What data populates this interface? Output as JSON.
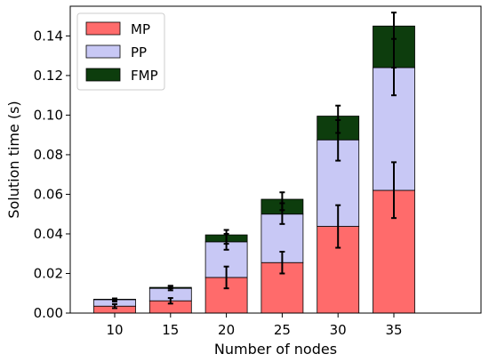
{
  "chart_data": {
    "type": "bar",
    "stacked": true,
    "xlabel": "Number of nodes",
    "ylabel": "Solution time (s)",
    "categories": [
      "10",
      "15",
      "20",
      "25",
      "30",
      "35"
    ],
    "ylim": [
      0,
      0.155
    ],
    "yticks": [
      0.0,
      0.02,
      0.04,
      0.06,
      0.08,
      0.1,
      0.12,
      0.14
    ],
    "ytick_labels": [
      "0.00",
      "0.02",
      "0.04",
      "0.06",
      "0.08",
      "0.10",
      "0.12",
      "0.14"
    ],
    "grid": false,
    "legend_position": "top-left",
    "series": [
      {
        "name": "MP",
        "color": "#ff6b6b",
        "values": [
          0.0035,
          0.0062,
          0.018,
          0.0255,
          0.0438,
          0.062
        ],
        "error_low": [
          0.0025,
          0.0048,
          0.0125,
          0.02,
          0.033,
          0.048
        ],
        "error_high": [
          0.0045,
          0.0076,
          0.0235,
          0.031,
          0.0545,
          0.0762
        ]
      },
      {
        "name": "PP",
        "color": "#c8c8f5",
        "values": [
          0.0033,
          0.0063,
          0.018,
          0.0245,
          0.0437,
          0.062
        ],
        "error_low": [
          0.0058,
          0.0115,
          0.032,
          0.045,
          0.077,
          0.11
        ],
        "error_high": [
          0.0074,
          0.0136,
          0.04,
          0.0555,
          0.0975,
          0.1385
        ]
      },
      {
        "name": "FMP",
        "color": "#0d3d0d",
        "values": [
          0.0002,
          0.0005,
          0.0035,
          0.0075,
          0.012,
          0.021
        ],
        "error_low": [
          0.0066,
          0.0125,
          0.035,
          0.052,
          0.091,
          0.124
        ],
        "error_high": [
          0.0072,
          0.0138,
          0.042,
          0.061,
          0.1048,
          0.1518
        ]
      }
    ]
  }
}
